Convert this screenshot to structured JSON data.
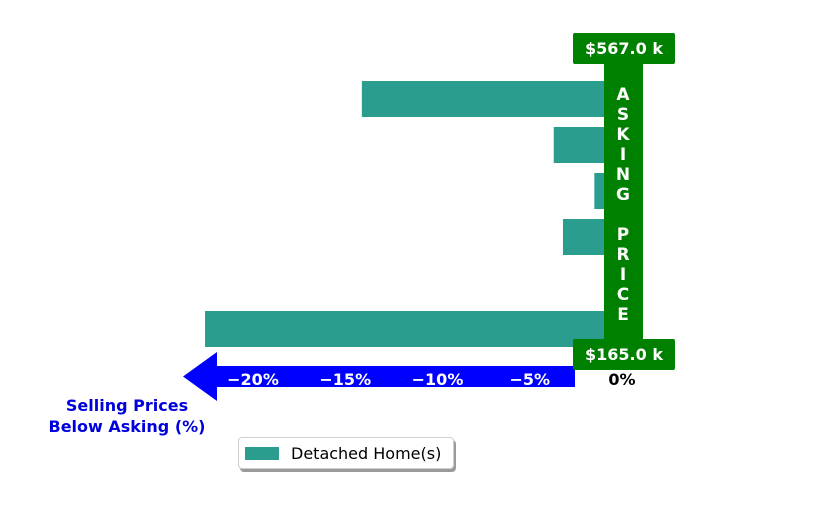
{
  "chart_data": {
    "type": "bar",
    "orientation": "horizontal",
    "series": [
      {
        "name": "Detached Home(s)",
        "color": "#2a9d8f",
        "values": [
          -14.1,
          -3.7,
          -1.5,
          -3.2,
          0.2,
          -22.6
        ]
      }
    ],
    "xlim": [
      -23.5,
      0
    ],
    "x_ticks": [
      {
        "value": -20,
        "label": "−20%"
      },
      {
        "value": -15,
        "label": "−15%"
      },
      {
        "value": -10,
        "label": "−10%"
      },
      {
        "value": -5,
        "label": "−5%"
      },
      {
        "value": 0,
        "label": "0%"
      }
    ],
    "xlabel": "Selling Prices\nBelow Asking (%)",
    "asking_price_label": "ASKING PRICE",
    "top_price_label": "$567.0 k",
    "bottom_price_label": "$165.0 k",
    "legend_position": "lower-center",
    "colors": {
      "bar": "#2a9d8f",
      "asking": "#008000",
      "arrow": "#0000ff",
      "xlabel": "#0000dd"
    }
  }
}
